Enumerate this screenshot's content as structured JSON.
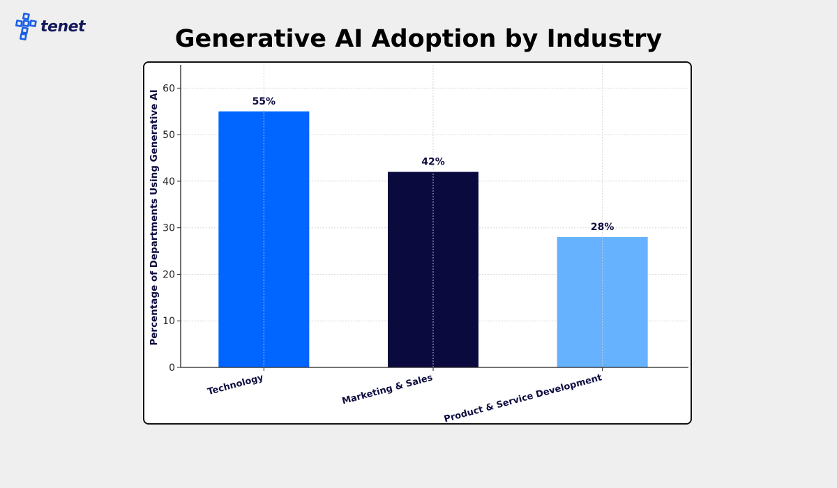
{
  "brand": {
    "name": "tenet",
    "colors": {
      "primary": "#1a5fe6",
      "dark": "#15195a"
    }
  },
  "chart_data": {
    "type": "bar",
    "title": "Generative AI Adoption by Industry",
    "xlabel": "",
    "ylabel": "Percentage of Departments Using Generative AI",
    "categories": [
      "Technology",
      "Marketing & Sales",
      "Product & Service Development"
    ],
    "values": [
      55,
      42,
      28
    ],
    "value_labels": [
      "55%",
      "42%",
      "28%"
    ],
    "colors": [
      "#0066ff",
      "#0b0a3f",
      "#66b2ff"
    ],
    "ylim": [
      0,
      65
    ],
    "yticks": [
      0,
      10,
      20,
      30,
      40,
      50,
      60
    ],
    "grid": true,
    "legend": "none"
  }
}
